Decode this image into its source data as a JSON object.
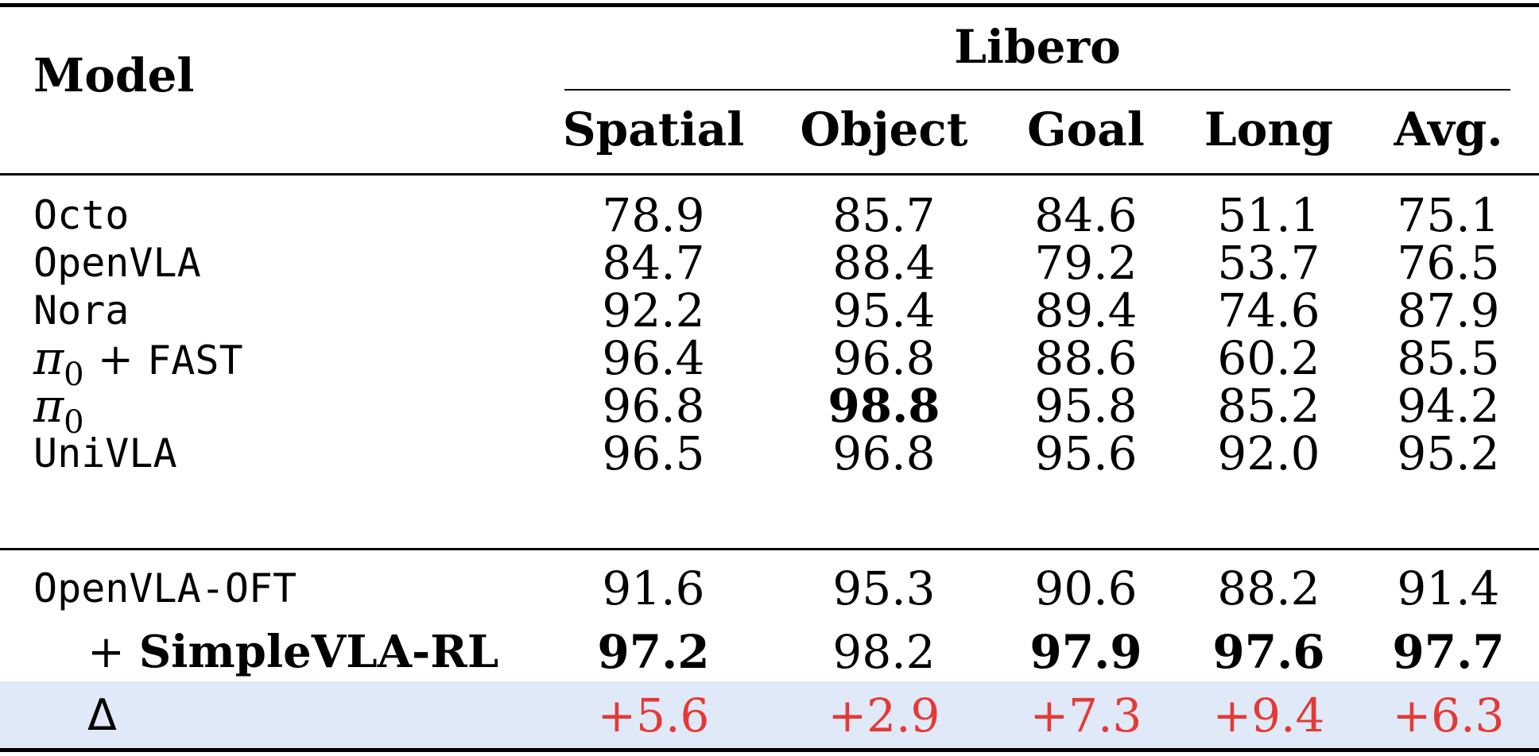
{
  "header": {
    "model": "Model",
    "group": "Libero",
    "columns": [
      "Spatial",
      "Object",
      "Goal",
      "Long",
      "Avg."
    ]
  },
  "rows": [
    {
      "model": "Octo",
      "values": [
        "78.9",
        "85.7",
        "84.6",
        "51.1",
        "75.1"
      ],
      "bold": [
        false,
        false,
        false,
        false,
        false
      ]
    },
    {
      "model": "OpenVLA",
      "values": [
        "84.7",
        "88.4",
        "79.2",
        "53.7",
        "76.5"
      ],
      "bold": [
        false,
        false,
        false,
        false,
        false
      ]
    },
    {
      "model": "Nora",
      "values": [
        "92.2",
        "95.4",
        "89.4",
        "74.6",
        "87.9"
      ],
      "bold": [
        false,
        false,
        false,
        false,
        false
      ]
    },
    {
      "model_pi": "π",
      "model_sub": "0",
      "model_plus": " + ",
      "model": "FAST",
      "values": [
        "96.4",
        "96.8",
        "88.6",
        "60.2",
        "85.5"
      ],
      "bold": [
        false,
        false,
        false,
        false,
        false
      ]
    },
    {
      "model_pi": "π",
      "model_sub": "0",
      "values": [
        "96.8",
        "98.8",
        "95.8",
        "85.2",
        "94.2"
      ],
      "bold": [
        false,
        true,
        false,
        false,
        false
      ]
    },
    {
      "model": "UniVLA",
      "values": [
        "96.5",
        "96.8",
        "95.6",
        "92.0",
        "95.2"
      ],
      "bold": [
        false,
        false,
        false,
        false,
        false
      ]
    }
  ],
  "rows2": [
    {
      "model": "OpenVLA-OFT",
      "values": [
        "91.6",
        "95.3",
        "90.6",
        "88.2",
        "91.4"
      ],
      "bold": [
        false,
        false,
        false,
        false,
        false
      ]
    },
    {
      "model_prefix": "+ ",
      "model": "SimpleVLA-RL",
      "values": [
        "97.2",
        "98.2",
        "97.9",
        "97.6",
        "97.7"
      ],
      "bold": [
        true,
        false,
        true,
        true,
        true
      ]
    },
    {
      "model": "Δ",
      "values": [
        "+5.6",
        "+2.9",
        "+7.3",
        "+9.4",
        "+6.3"
      ],
      "bold": [
        false,
        false,
        false,
        false,
        false
      ]
    }
  ],
  "colors": {
    "delta": "#e53935",
    "highlight": "#dfe9f7"
  }
}
